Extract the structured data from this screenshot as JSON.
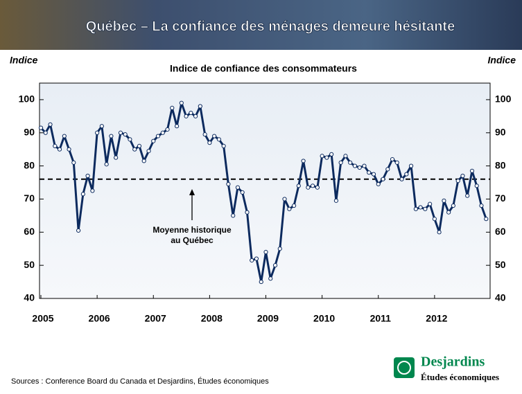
{
  "header": {
    "title": "Québec – La confiance des ménages demeure hésitante"
  },
  "chart_data": {
    "type": "line",
    "title": "Indice de confiance des consommateurs",
    "y_label": "Indice",
    "x": [
      2005,
      2005.083,
      2005.167,
      2005.25,
      2005.333,
      2005.417,
      2005.5,
      2005.583,
      2005.667,
      2005.75,
      2005.833,
      2005.917,
      2006,
      2006.083,
      2006.167,
      2006.25,
      2006.333,
      2006.417,
      2006.5,
      2006.583,
      2006.667,
      2006.75,
      2006.833,
      2006.917,
      2007,
      2007.083,
      2007.167,
      2007.25,
      2007.333,
      2007.417,
      2007.5,
      2007.583,
      2007.667,
      2007.75,
      2007.833,
      2007.917,
      2008,
      2008.083,
      2008.167,
      2008.25,
      2008.333,
      2008.417,
      2008.5,
      2008.583,
      2008.667,
      2008.75,
      2008.833,
      2008.917,
      2009,
      2009.083,
      2009.167,
      2009.25,
      2009.333,
      2009.417,
      2009.5,
      2009.583,
      2009.667,
      2009.75,
      2009.833,
      2009.917,
      2010,
      2010.083,
      2010.167,
      2010.25,
      2010.333,
      2010.417,
      2010.5,
      2010.583,
      2010.667,
      2010.75,
      2010.833,
      2010.917,
      2011,
      2011.083,
      2011.167,
      2011.25,
      2011.333,
      2011.417,
      2011.5,
      2011.583,
      2011.667,
      2011.75,
      2011.833,
      2011.917,
      2012,
      2012.083,
      2012.167,
      2012.25,
      2012.333,
      2012.417,
      2012.5,
      2012.583,
      2012.667,
      2012.75,
      2012.833,
      2012.917
    ],
    "series": [
      {
        "color": "#0c2a5e",
        "values": [
          91.5,
          90,
          92.5,
          86,
          85,
          89,
          85,
          81,
          60.5,
          71.5,
          77,
          72.5,
          90,
          92,
          80.5,
          89,
          82.5,
          90,
          89.5,
          88,
          85,
          86,
          81.5,
          84.5,
          87.5,
          89,
          90,
          91,
          97.5,
          92,
          99,
          95,
          96,
          95,
          98,
          89.5,
          87,
          89,
          88,
          86,
          74.5,
          65,
          73.5,
          72,
          66,
          51.5,
          52,
          45,
          54,
          46,
          50,
          55,
          70,
          67,
          68,
          74,
          81.5,
          73.5,
          74,
          73.5,
          83,
          82.5,
          83.5,
          69.5,
          81,
          83,
          81,
          80,
          79.5,
          80,
          78,
          77.5,
          74.5,
          76,
          79,
          82,
          81,
          76,
          77.5,
          80,
          67,
          67.5,
          67,
          68.5,
          64,
          60,
          69.5,
          66,
          68,
          75.5,
          77,
          71,
          78.5,
          74,
          68,
          64
        ]
      }
    ],
    "mean_line": 76,
    "annotation": [
      "Moyenne historique",
      "au Québec"
    ],
    "xlim": [
      2005,
      2013
    ],
    "xticks": [
      2005,
      2006,
      2007,
      2008,
      2009,
      2010,
      2011,
      2012
    ],
    "ylim": [
      40,
      105
    ],
    "yticks": [
      40,
      50,
      60,
      70,
      80,
      90,
      100
    ]
  },
  "footer": {
    "sources": "Sources : Conference Board du Canada et Desjardins, Études économiques",
    "brand": "Desjardins",
    "brand_sub": "Études économiques"
  }
}
